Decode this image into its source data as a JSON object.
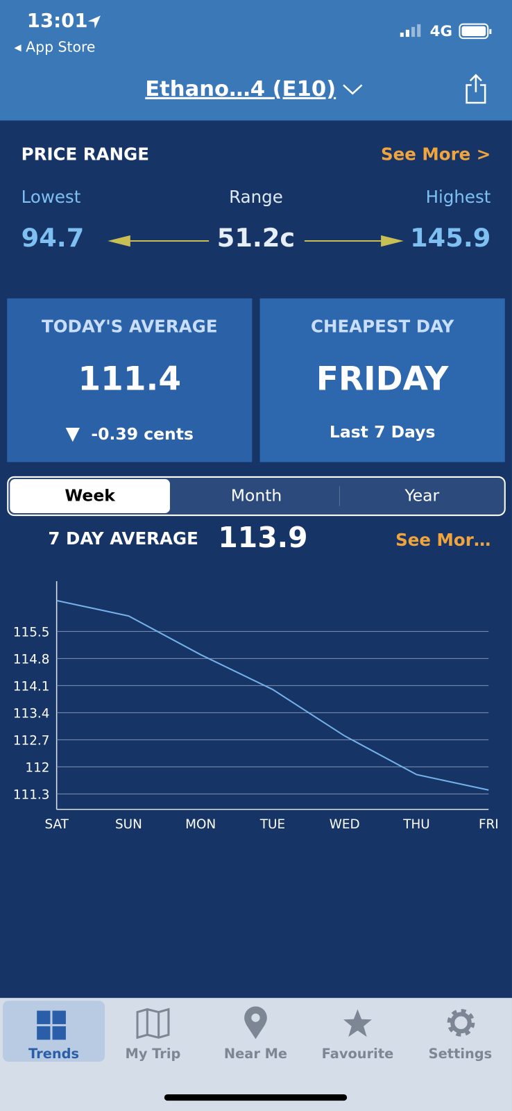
{
  "status_bar": {
    "time": "13:01",
    "back": "App Store",
    "network": "4G"
  },
  "header": {
    "title": "Ethano…4 (E10)"
  },
  "price_range": {
    "title": "PRICE RANGE",
    "see_more": "See More >",
    "lowest_label": "Lowest",
    "range_label": "Range",
    "highest_label": "Highest",
    "lowest": "94.7",
    "range": "51.2c",
    "highest": "145.9"
  },
  "cards": [
    {
      "title": "TODAY'S AVERAGE",
      "value": "111.4",
      "note": "-0.39 cents"
    },
    {
      "title": "CHEAPEST DAY",
      "value": "FRIDAY",
      "note": "Last 7 Days"
    }
  ],
  "tabs": [
    "Week",
    "Month",
    "Year"
  ],
  "summary": {
    "label": "7 DAY AVERAGE",
    "value": "113.9",
    "see_more": "See Mor…"
  },
  "chart_data": {
    "type": "line",
    "categories": [
      "SAT",
      "SUN",
      "MON",
      "TUE",
      "WED",
      "THU",
      "FRI"
    ],
    "values": [
      116.3,
      115.9,
      114.9,
      114.0,
      112.8,
      111.8,
      111.4
    ],
    "color": "#72b2e8",
    "ylim": [
      110.9,
      116.8
    ],
    "yticks": [
      111.3,
      112.0,
      112.7,
      113.4,
      114.1,
      114.8,
      115.5
    ],
    "grid": true
  },
  "tab_bar": [
    "Trends",
    "My Trip",
    "Near Me",
    "Favourite",
    "Settings"
  ]
}
